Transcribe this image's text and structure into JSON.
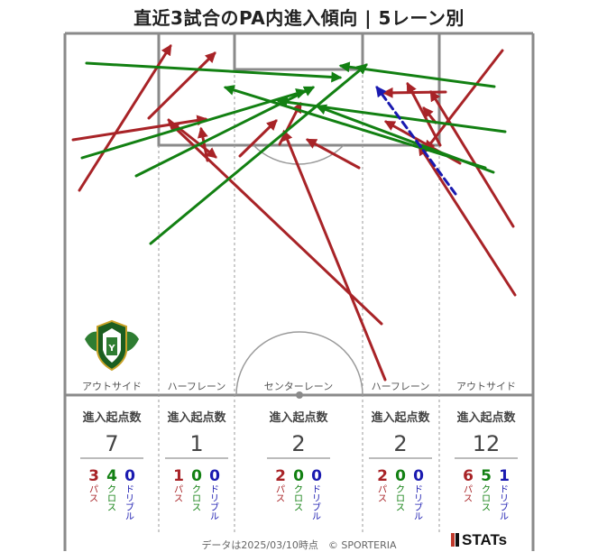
{
  "chart_data": {
    "type": "arrow-map",
    "title": "直近3試合のPA内進入傾向 | 5レーン別",
    "lanes": [
      {
        "name": "アウトサイド",
        "header": "進入起点数",
        "total": "7",
        "pass": "3",
        "cross": "4",
        "dribble": "0"
      },
      {
        "name": "ハーフレーン",
        "header": "進入起点数",
        "total": "1",
        "pass": "1",
        "cross": "0",
        "dribble": "0"
      },
      {
        "name": "センターレーン",
        "header": "進入起点数",
        "total": "2",
        "pass": "2",
        "cross": "0",
        "dribble": "0"
      },
      {
        "name": "ハーフレーン",
        "header": "進入起点数",
        "total": "2",
        "pass": "2",
        "cross": "0",
        "dribble": "0"
      },
      {
        "name": "アウトサイド",
        "header": "進入起点数",
        "total": "12",
        "pass": "6",
        "cross": "5",
        "dribble": "1"
      }
    ],
    "type_labels": {
      "pass": "パス",
      "cross": "クロス",
      "dribble": "ドリブル"
    },
    "colors": {
      "pass": "#a82327",
      "cross": "#128012",
      "dribble": "#1a1ab0"
    }
  },
  "footer": {
    "text": "データは2025/03/10時点　© SPORTERIA",
    "brand": "STATs"
  }
}
